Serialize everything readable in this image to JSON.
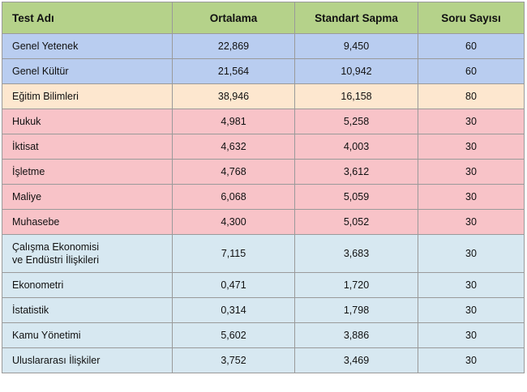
{
  "table": {
    "headers": [
      "Test Adı",
      "Ortalama",
      "Standart  Sapma",
      "Soru Sayısı"
    ],
    "rows": [
      {
        "name": [
          "Genel Yetenek"
        ],
        "mean": "22,869",
        "sd": "9,450",
        "count": "60",
        "group": "blue"
      },
      {
        "name": [
          "Genel Kültür"
        ],
        "mean": "21,564",
        "sd": "10,942",
        "count": "60",
        "group": "blue"
      },
      {
        "name": [
          "Eğitim Bilimleri"
        ],
        "mean": "38,946",
        "sd": "16,158",
        "count": "80",
        "group": "orange"
      },
      {
        "name": [
          "Hukuk"
        ],
        "mean": "4,981",
        "sd": "5,258",
        "count": "30",
        "group": "pink"
      },
      {
        "name": [
          "İktisat"
        ],
        "mean": "4,632",
        "sd": "4,003",
        "count": "30",
        "group": "pink"
      },
      {
        "name": [
          "İşletme"
        ],
        "mean": "4,768",
        "sd": "3,612",
        "count": "30",
        "group": "pink"
      },
      {
        "name": [
          "Maliye"
        ],
        "mean": "6,068",
        "sd": "5,059",
        "count": "30",
        "group": "pink"
      },
      {
        "name": [
          "Muhasebe"
        ],
        "mean": "4,300",
        "sd": "5,052",
        "count": "30",
        "group": "pink"
      },
      {
        "name": [
          "Çalışma Ekonomisi",
          "ve Endüstri İlişkileri"
        ],
        "mean": "7,115",
        "sd": "3,683",
        "count": "30",
        "group": "light"
      },
      {
        "name": [
          "Ekonometri"
        ],
        "mean": "0,471",
        "sd": "1,720",
        "count": "30",
        "group": "light"
      },
      {
        "name": [
          "İstatistik"
        ],
        "mean": "0,314",
        "sd": "1,798",
        "count": "30",
        "group": "light"
      },
      {
        "name": [
          "Kamu Yönetimi"
        ],
        "mean": "5,602",
        "sd": "3,886",
        "count": "30",
        "group": "light"
      },
      {
        "name": [
          "Uluslararası İlişkiler"
        ],
        "mean": "3,752",
        "sd": "3,469",
        "count": "30",
        "group": "light"
      }
    ]
  },
  "colors": {
    "header": "#b5d28a",
    "blue": "#b9cdf0",
    "orange": "#fde7cf",
    "pink": "#f8c3c8",
    "light": "#d7e8f1",
    "border": "#9a9a9a"
  }
}
